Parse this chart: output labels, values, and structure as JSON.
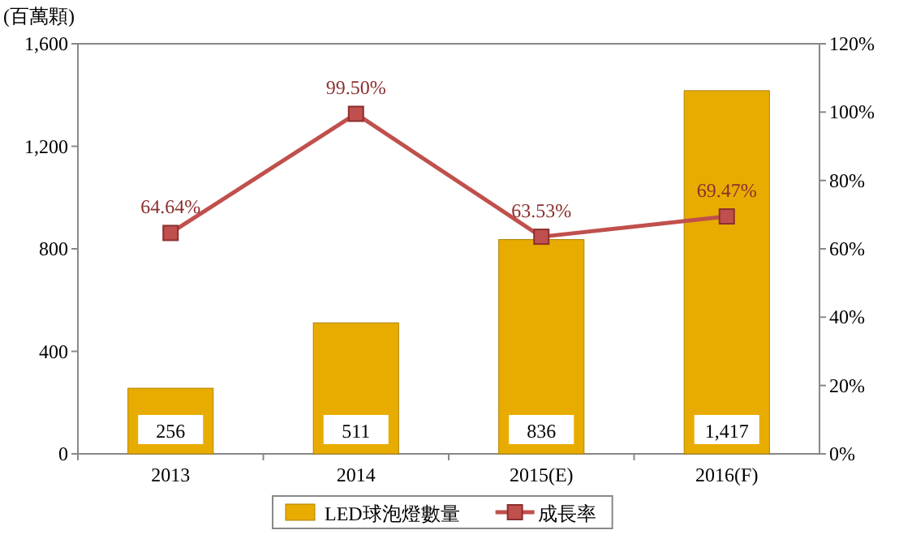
{
  "chart_data": {
    "type": "bar",
    "ylabel": "(百萬顆)",
    "categories": [
      "2013",
      "2014",
      "2015(E)",
      "2016(F)"
    ],
    "series": [
      {
        "name": "LED球泡燈數量",
        "color": "#e8ac00",
        "values": [
          256,
          511,
          836,
          1417
        ],
        "value_labels": [
          "256",
          "511",
          "836",
          "1,417"
        ]
      },
      {
        "name": "成長率",
        "type": "line",
        "axis": "y2",
        "color": "#c0504d",
        "values": [
          64.64,
          99.5,
          63.53,
          69.47
        ],
        "value_labels": [
          "64.64%",
          "99.50%",
          "63.53%",
          "69.47%"
        ]
      }
    ],
    "ylim": [
      0,
      1600
    ],
    "yticks": [
      {
        "value": 0,
        "label": "0"
      },
      {
        "value": 400,
        "label": "400"
      },
      {
        "value": 800,
        "label": "800"
      },
      {
        "value": 1200,
        "label": "1,200"
      },
      {
        "value": 1600,
        "label": "1,600"
      }
    ],
    "y2lim": [
      0,
      120
    ],
    "y2ticks": [
      {
        "value": 0,
        "label": "0%"
      },
      {
        "value": 20,
        "label": "20%"
      },
      {
        "value": 40,
        "label": "40%"
      },
      {
        "value": 60,
        "label": "60%"
      },
      {
        "value": 80,
        "label": "80%"
      },
      {
        "value": 100,
        "label": "100%"
      },
      {
        "value": 120,
        "label": "120%"
      }
    ],
    "legend": "bottom",
    "marker": "square",
    "grid": false
  }
}
